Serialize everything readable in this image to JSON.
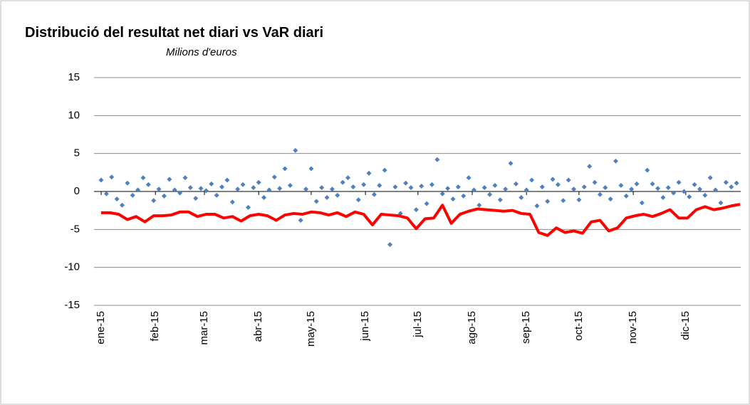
{
  "chart_data": {
    "type": "scatter-line",
    "title": "Distribució del resultat net diari vs VaR diari",
    "subtitle": "Milions d'euros",
    "xlim": [
      0,
      365
    ],
    "ylim": [
      -15,
      15
    ],
    "yticks": [
      -15,
      -10,
      -5,
      0,
      5,
      10,
      15
    ],
    "xticks": [
      {
        "value": 0,
        "label": "ene-15"
      },
      {
        "value": 31,
        "label": "feb-15"
      },
      {
        "value": 59,
        "label": "mar-15"
      },
      {
        "value": 90,
        "label": "abr-15"
      },
      {
        "value": 120,
        "label": "may-15"
      },
      {
        "value": 151,
        "label": "jun-15"
      },
      {
        "value": 181,
        "label": "jul-15"
      },
      {
        "value": 212,
        "label": "ago-15"
      },
      {
        "value": 243,
        "label": "sep-15"
      },
      {
        "value": 273,
        "label": "oct-15"
      },
      {
        "value": 304,
        "label": "nov-15"
      },
      {
        "value": 334,
        "label": "dic-15"
      }
    ],
    "grid": true,
    "scatter": {
      "color": "#4f81bd",
      "x": [
        0,
        3,
        6,
        9,
        12,
        15,
        18,
        21,
        24,
        27,
        30,
        33,
        36,
        39,
        42,
        45,
        48,
        51,
        54,
        57,
        60,
        63,
        66,
        69,
        72,
        75,
        78,
        81,
        84,
        87,
        90,
        93,
        96,
        99,
        102,
        105,
        108,
        111,
        114,
        117,
        120,
        123,
        126,
        129,
        132,
        135,
        138,
        141,
        144,
        147,
        150,
        153,
        156,
        159,
        162,
        165,
        168,
        171,
        174,
        177,
        180,
        183,
        186,
        189,
        192,
        195,
        198,
        201,
        204,
        207,
        210,
        213,
        216,
        219,
        222,
        225,
        228,
        231,
        234,
        237,
        240,
        243,
        246,
        249,
        252,
        255,
        258,
        261,
        264,
        267,
        270,
        273,
        276,
        279,
        282,
        285,
        288,
        291,
        294,
        297,
        300,
        303,
        306,
        309,
        312,
        315,
        318,
        321,
        324,
        327,
        330,
        333,
        336,
        339,
        342,
        345,
        348,
        351,
        354,
        357,
        360,
        363
      ],
      "values": [
        1.5,
        -0.3,
        1.9,
        -1.0,
        -1.8,
        1.1,
        -0.5,
        0.2,
        1.8,
        0.9,
        -1.2,
        0.3,
        -0.6,
        1.6,
        0.2,
        -0.2,
        1.8,
        0.5,
        -0.9,
        0.4,
        0.1,
        1.0,
        -0.5,
        0.6,
        1.5,
        -1.4,
        0.3,
        0.9,
        -2.1,
        0.5,
        1.2,
        -0.8,
        0.2,
        1.9,
        0.4,
        3.0,
        0.8,
        5.4,
        -3.8,
        0.3,
        3.0,
        -1.3,
        0.5,
        -0.8,
        0.3,
        -0.5,
        1.2,
        1.8,
        0.6,
        -1.1,
        0.9,
        2.4,
        -0.4,
        0.8,
        2.8,
        -7.0,
        0.6,
        -2.9,
        1.1,
        0.5,
        -2.4,
        0.7,
        -1.6,
        0.9,
        4.2,
        -0.3,
        0.4,
        -1.0,
        0.6,
        -0.6,
        1.8,
        0.2,
        -1.8,
        0.5,
        -0.4,
        0.8,
        -1.1,
        0.3,
        3.7,
        1.0,
        -0.8,
        0.2,
        1.5,
        -1.9,
        0.6,
        -1.3,
        1.6,
        0.9,
        -1.2,
        1.5,
        0.3,
        -1.1,
        0.6,
        3.3,
        1.2,
        -0.4,
        0.5,
        -1.0,
        4.0,
        0.8,
        -0.6,
        0.3,
        1.0,
        -1.5,
        2.8,
        1.0,
        0.4,
        -0.8,
        0.5,
        -0.2,
        1.2,
        0.0,
        -0.7,
        0.9,
        0.3,
        -0.5,
        1.8,
        0.2,
        -1.5,
        1.2,
        0.6,
        1.1
      ]
    },
    "line": {
      "color": "#ff0000",
      "x": [
        0,
        5,
        10,
        15,
        20,
        25,
        30,
        35,
        40,
        45,
        50,
        55,
        60,
        65,
        70,
        75,
        80,
        85,
        90,
        95,
        100,
        105,
        110,
        115,
        120,
        125,
        130,
        135,
        140,
        145,
        150,
        155,
        160,
        165,
        170,
        175,
        180,
        185,
        190,
        195,
        200,
        205,
        210,
        215,
        220,
        225,
        230,
        235,
        240,
        245,
        250,
        255,
        260,
        265,
        270,
        275,
        280,
        285,
        290,
        295,
        300,
        305,
        310,
        315,
        320,
        325,
        330,
        335,
        340,
        345,
        350,
        355,
        360,
        365
      ],
      "values": [
        -2.8,
        -2.8,
        -3.0,
        -3.7,
        -3.3,
        -4.0,
        -3.2,
        -3.2,
        -3.1,
        -2.7,
        -2.7,
        -3.3,
        -3.0,
        -3.0,
        -3.5,
        -3.3,
        -3.9,
        -3.2,
        -3.0,
        -3.2,
        -3.8,
        -3.1,
        -2.9,
        -3.0,
        -2.7,
        -2.8,
        -3.1,
        -2.8,
        -3.3,
        -2.7,
        -3.0,
        -4.4,
        -3.0,
        -3.1,
        -3.2,
        -3.5,
        -4.9,
        -3.6,
        -3.5,
        -1.8,
        -4.2,
        -3.0,
        -2.6,
        -2.3,
        -2.4,
        -2.5,
        -2.6,
        -2.5,
        -2.9,
        -3.0,
        -5.4,
        -5.8,
        -4.8,
        -5.4,
        -5.2,
        -5.5,
        -4.0,
        -3.8,
        -5.2,
        -4.8,
        -3.5,
        -3.2,
        -3.0,
        -3.3,
        -2.9,
        -2.4,
        -3.5,
        -3.5,
        -2.4,
        -2.0,
        -2.4,
        -2.2,
        -1.9,
        -1.7
      ]
    }
  }
}
